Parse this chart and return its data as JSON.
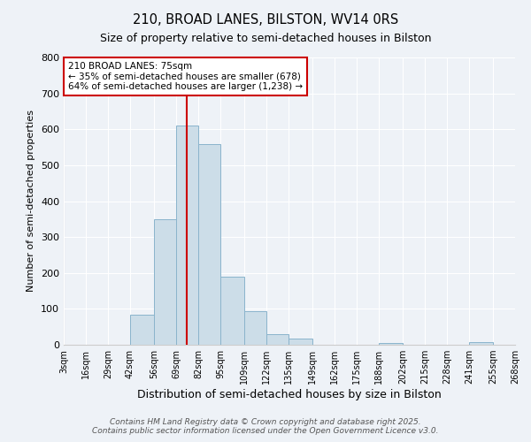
{
  "title": "210, BROAD LANES, BILSTON, WV14 0RS",
  "subtitle": "Size of property relative to semi-detached houses in Bilston",
  "xlabel": "Distribution of semi-detached houses by size in Bilston",
  "ylabel": "Number of semi-detached properties",
  "bin_edges": [
    3,
    16,
    29,
    42,
    56,
    69,
    82,
    95,
    109,
    122,
    135,
    149,
    162,
    175,
    188,
    202,
    215,
    228,
    241,
    255,
    268
  ],
  "bin_heights": [
    0,
    0,
    0,
    83,
    350,
    610,
    560,
    190,
    93,
    30,
    17,
    0,
    0,
    0,
    5,
    0,
    0,
    0,
    7,
    0
  ],
  "bar_facecolor": "#ccdde8",
  "bar_edgecolor": "#8ab4cc",
  "vline_x": 75,
  "vline_color": "#cc0000",
  "annotation_title": "210 BROAD LANES: 75sqm",
  "annotation_line1": "← 35% of semi-detached houses are smaller (678)",
  "annotation_line2": "64% of semi-detached houses are larger (1,238) →",
  "annotation_box_edgecolor": "#cc0000",
  "ylim": [
    0,
    800
  ],
  "yticks": [
    0,
    100,
    200,
    300,
    400,
    500,
    600,
    700,
    800
  ],
  "footer1": "Contains HM Land Registry data © Crown copyright and database right 2025.",
  "footer2": "Contains public sector information licensed under the Open Government Licence v3.0.",
  "bg_color": "#eef2f7",
  "plot_bg_color": "#eef2f7",
  "grid_color": "#ffffff",
  "title_fontsize": 10.5,
  "subtitle_fontsize": 9,
  "xlabel_fontsize": 9,
  "ylabel_fontsize": 8,
  "tick_fontsize": 7,
  "footer_fontsize": 6.5
}
